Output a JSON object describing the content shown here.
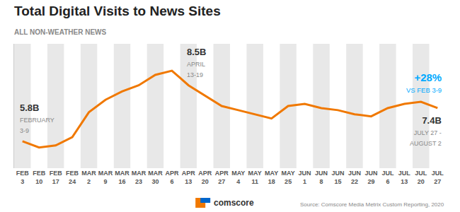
{
  "chart_data": {
    "type": "line",
    "title": "Total Digital Visits to News Sites",
    "subtitle": "ALL NON-WEATHER NEWS",
    "categories": [
      "FEB\n3",
      "FEB\n10",
      "FEB\n17",
      "FEB\n24",
      "MAR\n2",
      "MAR\n9",
      "MAR\n16",
      "MAR\n23",
      "MAR\n30",
      "APR\n6",
      "APR\n13",
      "APR\n20",
      "APR\n27",
      "MAY\n4",
      "MAY\n11",
      "MAY\n18",
      "MAY\n25",
      "JUN\n1",
      "JUN\n8",
      "JUN\n15",
      "JUN\n22",
      "JUN\n29",
      "JUL\n6",
      "JUL\n13",
      "JUL\n20",
      "JUL\n27"
    ],
    "values": [
      5.8,
      5.5,
      5.6,
      6.0,
      7.2,
      7.8,
      8.2,
      8.5,
      9.0,
      9.2,
      8.5,
      8.0,
      7.5,
      7.3,
      7.1,
      6.9,
      7.5,
      7.6,
      7.4,
      7.3,
      7.1,
      7.0,
      7.4,
      7.6,
      7.7,
      7.4
    ],
    "color": "#F07800",
    "ylim": [
      4.5,
      10.5
    ],
    "yticks": [],
    "grid": false,
    "tick_labels": "x",
    "annotations": [
      {
        "category": "FEB\n3",
        "text": "5.8B",
        "note": "FEBRUARY\n3-9"
      },
      {
        "category": "APR\n13",
        "text": "8.5B",
        "note": "APRIL\n13-19"
      },
      {
        "category": "JUL\n27",
        "text": "7.4B",
        "note": "JULY 27 -\nAUGUST 2"
      },
      {
        "category": "JUL\n27",
        "text": "+28%",
        "note": "VS FEB 3-9"
      }
    ],
    "logo": "comscore",
    "source": "Source: Comscore Media Metrix Custom Reporting, 2020"
  }
}
